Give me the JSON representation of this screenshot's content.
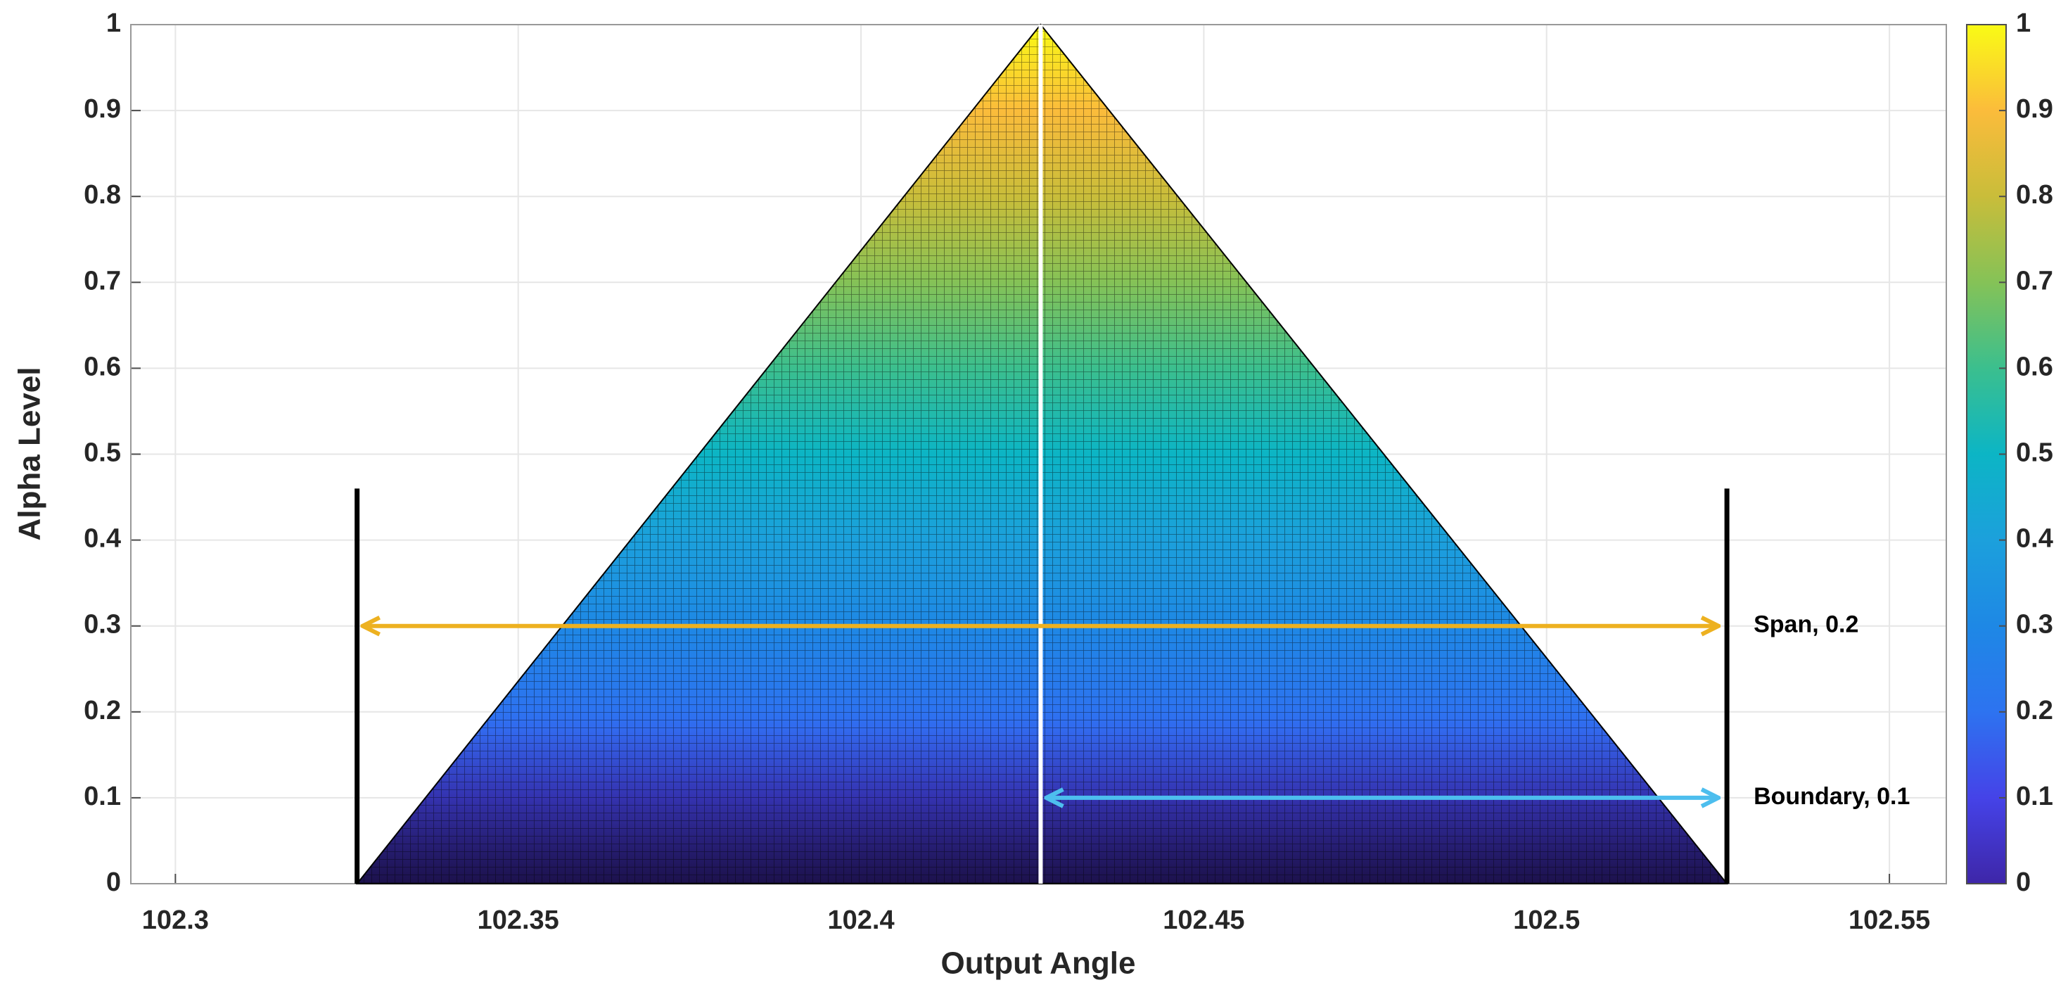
{
  "chart_data": {
    "type": "surface",
    "xlabel": "Output Angle",
    "ylabel": "Alpha Level",
    "x": [
      102.3265,
      102.4262,
      102.5263
    ],
    "y": [
      0,
      1,
      0
    ],
    "xlim": [
      102.2935,
      102.5583
    ],
    "ylim": [
      0,
      1
    ],
    "xticks": [
      102.3,
      102.35,
      102.4,
      102.45,
      102.5,
      102.55
    ],
    "yticks": [
      0,
      0.1,
      0.2,
      0.3,
      0.4,
      0.5,
      0.6,
      0.7,
      0.8,
      0.9,
      1
    ],
    "grid": true,
    "bounds": {
      "x": [
        102.3265,
        102.5263
      ],
      "height": 0.46,
      "color": "#000000"
    },
    "peak_line_color": "#ffffff",
    "annotations": [
      {
        "text": "Span, 0.2",
        "y": 0.3,
        "x": [
          102.3265,
          102.5263
        ],
        "color": "#edb120"
      },
      {
        "text": "Boundary, 0.1",
        "y": 0.1,
        "x": [
          102.4262,
          102.5263
        ],
        "color": "#4dbeee"
      }
    ],
    "colorbar": {
      "lim": [
        0,
        1
      ],
      "ticks": [
        0,
        0.1,
        0.2,
        0.3,
        0.4,
        0.5,
        0.6,
        0.7,
        0.8,
        0.9,
        1
      ],
      "colormap": [
        "#3e26a8",
        "#4543e8",
        "#2d73f0",
        "#1e88e5",
        "#1ca0dc",
        "#0cb5c5",
        "#3bbf8e",
        "#85c257",
        "#c9bd3a",
        "#fbbc3b",
        "#f9fb15"
      ]
    }
  }
}
